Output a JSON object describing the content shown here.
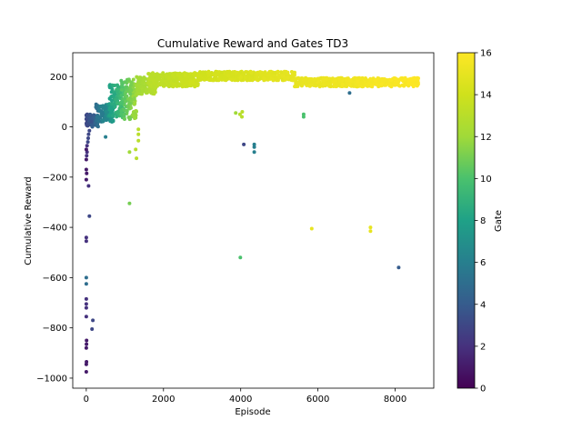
{
  "chart_data": {
    "type": "scatter",
    "title": "Cumulative Reward and Gates TD3",
    "xlabel": "Episode",
    "ylabel": "Cumulative Reward",
    "xlim": [
      -350,
      9000
    ],
    "ylim": [
      -1040,
      295
    ],
    "xticks": [
      0,
      2000,
      4000,
      6000,
      8000
    ],
    "yticks": [
      -1000,
      -800,
      -600,
      -400,
      -200,
      0,
      200
    ],
    "grid": false,
    "colorbar": {
      "label": "Gate",
      "range": [
        0,
        16
      ],
      "ticks": [
        0,
        2,
        4,
        6,
        8,
        10,
        12,
        14,
        16
      ],
      "colormap": "viridis"
    },
    "series": [
      {
        "color_by": "Gate",
        "points": [
          {
            "x": 0,
            "y": -975,
            "gate": 1
          },
          {
            "x": 0,
            "y": -945,
            "gate": 1
          },
          {
            "x": 5,
            "y": -935,
            "gate": 1
          },
          {
            "x": 0,
            "y": -880,
            "gate": 1
          },
          {
            "x": 5,
            "y": -865,
            "gate": 1
          },
          {
            "x": 8,
            "y": -850,
            "gate": 1
          },
          {
            "x": 0,
            "y": -755,
            "gate": 2
          },
          {
            "x": 150,
            "y": -805,
            "gate": 3
          },
          {
            "x": 170,
            "y": -770,
            "gate": 3
          },
          {
            "x": 0,
            "y": -720,
            "gate": 2
          },
          {
            "x": 0,
            "y": -705,
            "gate": 2
          },
          {
            "x": 0,
            "y": -685,
            "gate": 2
          },
          {
            "x": 0,
            "y": -625,
            "gate": 5
          },
          {
            "x": 0,
            "y": -600,
            "gate": 5
          },
          {
            "x": 0,
            "y": -455,
            "gate": 2
          },
          {
            "x": 0,
            "y": -440,
            "gate": 2
          },
          {
            "x": 80,
            "y": -355,
            "gate": 3
          },
          {
            "x": 60,
            "y": -235,
            "gate": 2
          },
          {
            "x": 0,
            "y": -210,
            "gate": 1
          },
          {
            "x": 10,
            "y": -185,
            "gate": 1
          },
          {
            "x": 0,
            "y": -170,
            "gate": 1
          },
          {
            "x": 0,
            "y": -130,
            "gate": 1
          },
          {
            "x": 10,
            "y": -115,
            "gate": 2
          },
          {
            "x": 20,
            "y": -100,
            "gate": 2
          },
          {
            "x": 0,
            "y": -90,
            "gate": 1
          },
          {
            "x": 20,
            "y": -75,
            "gate": 2
          },
          {
            "x": 40,
            "y": -60,
            "gate": 3
          },
          {
            "x": 50,
            "y": -45,
            "gate": 3
          },
          {
            "x": 60,
            "y": -30,
            "gate": 3
          },
          {
            "x": 80,
            "y": -15,
            "gate": 3
          },
          {
            "x": 1120,
            "y": -305,
            "gate": 11
          },
          {
            "x": 3990,
            "y": -520,
            "gate": 10
          },
          {
            "x": 5840,
            "y": -405,
            "gate": 15
          },
          {
            "x": 7360,
            "y": -400,
            "gate": 15
          },
          {
            "x": 7360,
            "y": -415,
            "gate": 15
          },
          {
            "x": 8090,
            "y": -560,
            "gate": 4
          },
          {
            "x": 4080,
            "y": -70,
            "gate": 3
          },
          {
            "x": 4350,
            "y": -70,
            "gate": 6
          },
          {
            "x": 4350,
            "y": -80,
            "gate": 6
          },
          {
            "x": 4350,
            "y": -100,
            "gate": 6
          },
          {
            "x": 1120,
            "y": -100,
            "gate": 12
          },
          {
            "x": 1280,
            "y": -90,
            "gate": 13
          },
          {
            "x": 1300,
            "y": -125,
            "gate": 13
          },
          {
            "x": 1350,
            "y": -55,
            "gate": 13
          },
          {
            "x": 1350,
            "y": -30,
            "gate": 13
          },
          {
            "x": 1350,
            "y": -10,
            "gate": 13
          },
          {
            "x": 500,
            "y": -40,
            "gate": 6
          },
          {
            "x": 3870,
            "y": 55,
            "gate": 12
          },
          {
            "x": 3980,
            "y": 50,
            "gate": 13
          },
          {
            "x": 4040,
            "y": 60,
            "gate": 13
          },
          {
            "x": 4030,
            "y": 40,
            "gate": 13
          },
          {
            "x": 5630,
            "y": 50,
            "gate": 10
          },
          {
            "x": 5630,
            "y": 40,
            "gate": 10
          },
          {
            "x": 6820,
            "y": 135,
            "gate": 5
          }
        ],
        "bands": [
          {
            "x_from": 0,
            "x_to": 320,
            "y_from": 0,
            "y_to": 50,
            "gate_from": 3,
            "gate_to": 5,
            "count": 80
          },
          {
            "x_from": 250,
            "x_to": 700,
            "y_from": 20,
            "y_to": 90,
            "gate_from": 5,
            "gate_to": 8,
            "count": 120
          },
          {
            "x_from": 600,
            "x_to": 1000,
            "y_from": 40,
            "y_to": 170,
            "gate_from": 8,
            "gate_to": 10,
            "count": 120
          },
          {
            "x_from": 900,
            "x_to": 1300,
            "y_from": 30,
            "y_to": 190,
            "gate_from": 10,
            "gate_to": 12,
            "count": 130
          },
          {
            "x_from": 1300,
            "x_to": 1800,
            "y_from": 130,
            "y_to": 200,
            "gate_from": 12,
            "gate_to": 13,
            "count": 140
          },
          {
            "x_from": 1600,
            "x_to": 2900,
            "y_from": 160,
            "y_to": 215,
            "gate_from": 13,
            "gate_to": 14,
            "count": 320
          },
          {
            "x_from": 2900,
            "x_to": 5400,
            "y_from": 185,
            "y_to": 220,
            "gate_from": 14,
            "gate_to": 15,
            "count": 420
          },
          {
            "x_from": 5400,
            "x_to": 8600,
            "y_from": 160,
            "y_to": 195,
            "gate_from": 15,
            "gate_to": 16,
            "count": 480
          }
        ]
      }
    ]
  }
}
